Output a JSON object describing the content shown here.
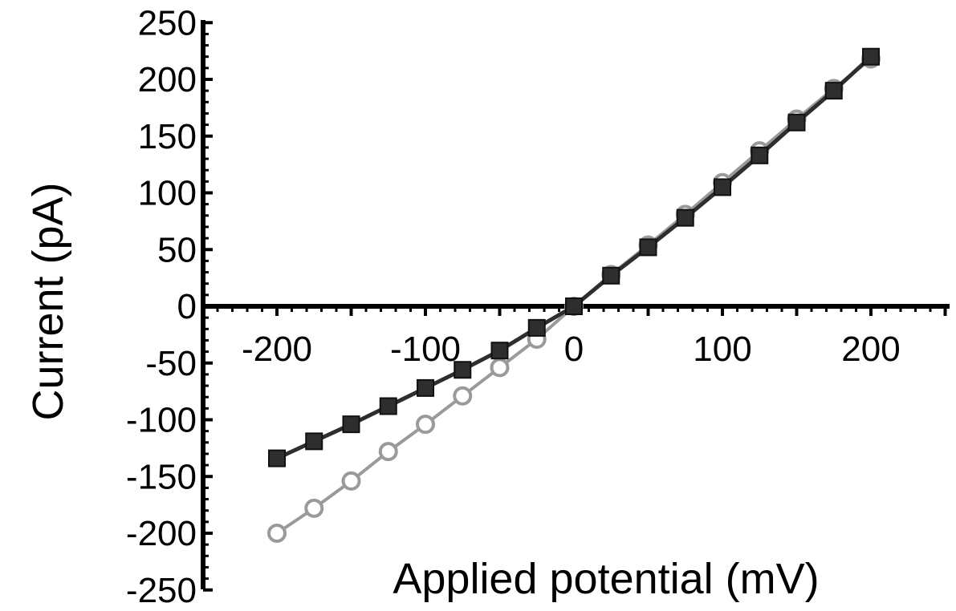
{
  "chart_data": {
    "type": "line",
    "xlabel": "Applied potential (mV)",
    "ylabel": "Current (pA)",
    "xlim": [
      -250,
      250
    ],
    "ylim": [
      -250,
      250
    ],
    "x_ticks": [
      -200,
      -100,
      0,
      100,
      200
    ],
    "y_ticks": [
      250,
      200,
      150,
      100,
      50,
      0,
      -50,
      -100,
      -150,
      -200,
      -250
    ],
    "grid": false,
    "x": [
      -200,
      -175,
      -150,
      -125,
      -100,
      -75,
      -50,
      -25,
      0,
      25,
      50,
      75,
      100,
      125,
      150,
      175,
      200
    ],
    "series": [
      {
        "marker": "square",
        "color": "#2e2e2e",
        "values": [
          -134,
          -119,
          -104,
          -88,
          -72,
          -56,
          -39,
          -19,
          0,
          27,
          52,
          78,
          105,
          133,
          162,
          190,
          220
        ]
      },
      {
        "marker": "circle",
        "color": "#9a9a9a",
        "values": [
          -200,
          -178,
          -154,
          -128,
          -104,
          -79,
          -54,
          -29,
          0,
          28,
          54,
          81,
          109,
          137,
          165,
          192,
          218
        ]
      }
    ]
  }
}
